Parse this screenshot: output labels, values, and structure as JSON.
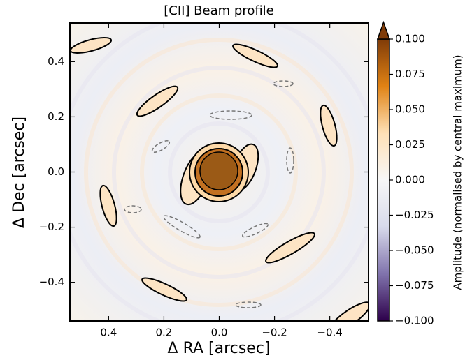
{
  "chart_data": {
    "type": "heatmap",
    "title": "[CII] Beam profile",
    "xlabel": "Δ RA [arcsec]",
    "ylabel": "Δ Dec [arcsec]",
    "xlim": [
      0.54,
      -0.54
    ],
    "ylim": [
      -0.54,
      0.54
    ],
    "xticks": [
      0.4,
      0.2,
      {
        "value": 0,
        "label": "0.0"
      },
      {
        "value": -0.2,
        "label": "−0.2"
      },
      {
        "value": -0.4,
        "label": "−0.4"
      }
    ],
    "yticks": [
      0.4,
      0.2,
      {
        "value": 0,
        "label": "0.0"
      },
      {
        "value": -0.2,
        "label": "−0.2"
      },
      {
        "value": -0.4,
        "label": "−0.4"
      }
    ],
    "colorbar": {
      "label": "Amplitude (normalised by central maximum)",
      "clim": [
        -0.1,
        0.1
      ],
      "extend": "max",
      "colormap": [
        "#2d004b",
        "#8073ac",
        "#d8daeb",
        "#f7f7f7",
        "#fee0b6",
        "#e08214",
        "#7f3b08"
      ],
      "ticks": [
        {
          "value": 0.1,
          "label": "0.100"
        },
        0.075,
        {
          "value": 0.05,
          "label": "0.050"
        },
        0.025,
        {
          "value": 0,
          "label": "0.000"
        },
        {
          "value": -0.025,
          "label": "−0.025"
        },
        {
          "value": -0.05,
          "label": "−0.050"
        },
        {
          "value": -0.075,
          "label": "−0.075"
        },
        {
          "value": -0.1,
          "label": "−0.100"
        }
      ]
    }
  }
}
